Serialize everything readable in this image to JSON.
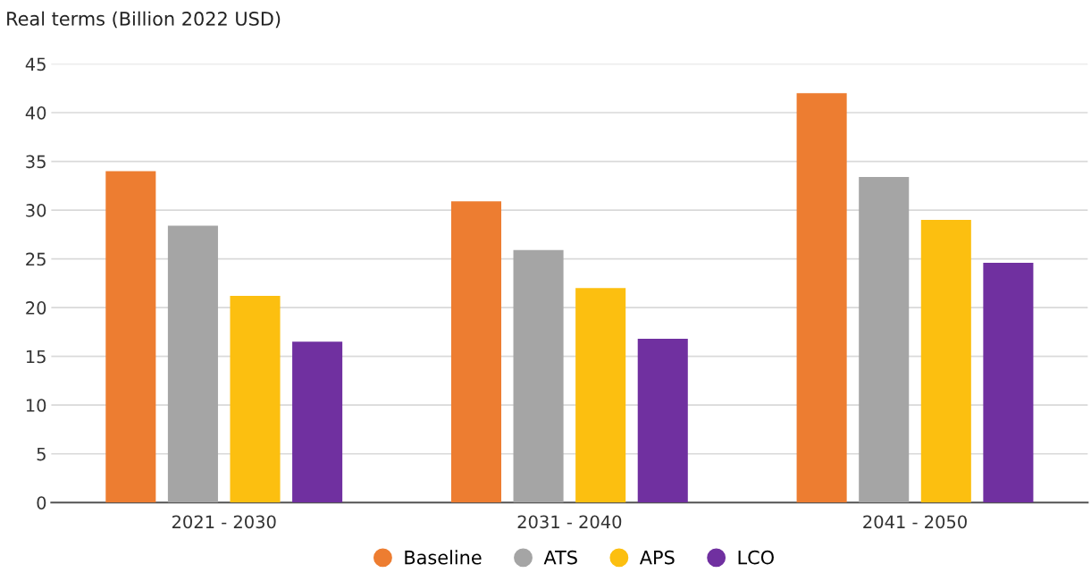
{
  "chart_data": {
    "type": "bar",
    "ylabel": "Real terms (Billion 2022 USD)",
    "categories": [
      "2021 - 2030",
      "2031 - 2040",
      "2041 - 2050"
    ],
    "series": [
      {
        "name": "Baseline",
        "color": "#ed7d31",
        "values": [
          34.0,
          30.9,
          42.0
        ]
      },
      {
        "name": "ATS",
        "color": "#a5a5a5",
        "values": [
          28.4,
          25.9,
          33.4
        ]
      },
      {
        "name": "APS",
        "color": "#fcbf10",
        "values": [
          21.2,
          22.0,
          29.0
        ]
      },
      {
        "name": "LCO",
        "color": "#7030a0",
        "values": [
          16.5,
          16.8,
          24.6
        ]
      }
    ],
    "ylim": [
      0,
      45
    ],
    "yticks": [
      0,
      5,
      10,
      15,
      20,
      25,
      30,
      35,
      40,
      45
    ],
    "grid": "y",
    "legend": "bottom"
  }
}
